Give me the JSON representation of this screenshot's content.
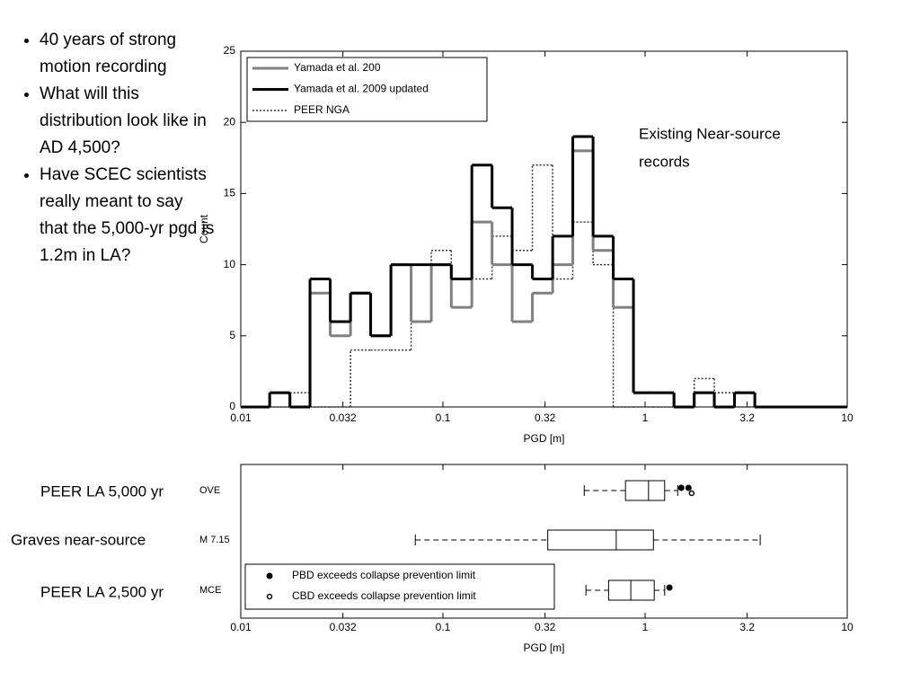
{
  "bullets": [
    "40 years of strong motion recording",
    "What will this distribution look like in AD 4,500?",
    "Have SCEC scientists really meant to say that the 5,000-yr pgd is 1.2m in LA?"
  ],
  "annotation": [
    "Existing Near-source",
    "records"
  ],
  "row_captions": [
    "PEER LA 5,000 yr",
    "Graves near-source",
    "PEER LA 2,500 yr"
  ],
  "chart_data": [
    {
      "type": "histogram",
      "xlabel": "PGD [m]",
      "ylabel": "Count",
      "xscale": "log",
      "xlim": [
        0.01,
        10
      ],
      "xticks": [
        0.01,
        0.032,
        0.1,
        0.32,
        1,
        3.2,
        10
      ],
      "ylim": [
        0,
        25
      ],
      "yticks": [
        0,
        5,
        10,
        15,
        20,
        25
      ],
      "legend": "upper left",
      "bins": [
        0.0139,
        0.0175,
        0.022,
        0.0277,
        0.0349,
        0.0439,
        0.0553,
        0.0696,
        0.0876,
        0.11,
        0.139,
        0.175,
        0.22,
        0.277,
        0.349,
        0.439,
        0.553,
        0.696,
        0.876,
        1.1,
        1.39,
        1.75,
        2.2,
        2.77,
        3.49
      ],
      "series": [
        {
          "name": "Yamada et al. 200",
          "color": "#808080",
          "style": "solid",
          "values": [
            1,
            0,
            8,
            5,
            8,
            5,
            10,
            6,
            10,
            7,
            13,
            10,
            6,
            8,
            10,
            18,
            11,
            7,
            1,
            1,
            0,
            1,
            0,
            1
          ]
        },
        {
          "name": "Yamada et al. 2009 updated",
          "color": "#000000",
          "style": "solid",
          "values": [
            1,
            0,
            9,
            6,
            8,
            5,
            10,
            10,
            10,
            9,
            17,
            14,
            10,
            9,
            12,
            19,
            12,
            9,
            1,
            1,
            0,
            1,
            0,
            1
          ]
        },
        {
          "name": "PEER NGA",
          "color": "#333333",
          "style": "dotted",
          "values": [
            0,
            1,
            0,
            0,
            4,
            4,
            4,
            10,
            11,
            9,
            9,
            12,
            11,
            17,
            9,
            13,
            10,
            0,
            0,
            0,
            0,
            2,
            1,
            0
          ]
        }
      ]
    },
    {
      "type": "box",
      "xlabel": "PGD [m]",
      "xscale": "log",
      "xlim": [
        0.01,
        10
      ],
      "xticks": [
        0.01,
        0.032,
        0.1,
        0.32,
        1,
        3.2,
        10
      ],
      "legend": "lower left",
      "legend_entries": [
        "PBD exceeds collapse prevention limit",
        "CBD exceeds collapse prevention limit"
      ],
      "boxes": [
        {
          "name": "OVE",
          "low": 0.5,
          "q1": 0.8,
          "median": 1.04,
          "q3": 1.25,
          "high": 1.45,
          "pbd": [
            1.51,
            1.64
          ],
          "cbd": [
            1.7
          ]
        },
        {
          "name": "M 7.15",
          "low": 0.073,
          "q1": 0.33,
          "median": 0.72,
          "q3": 1.1,
          "high": 3.71,
          "pbd": [],
          "cbd": []
        },
        {
          "name": "MCE",
          "low": 0.51,
          "q1": 0.66,
          "median": 0.85,
          "q3": 1.11,
          "high": 1.25,
          "pbd": [
            1.32
          ],
          "cbd": []
        }
      ]
    }
  ]
}
